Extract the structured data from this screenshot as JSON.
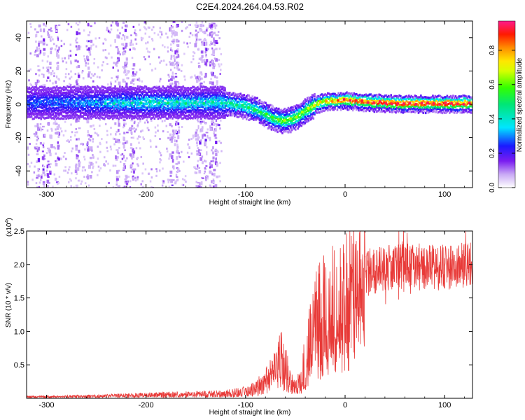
{
  "title": "C2E4.2024.264.04.53.R02",
  "chart_data": [
    {
      "type": "heatmap",
      "xlabel": "Height of straight line (km)",
      "ylabel": "Frequency (Hz)",
      "xlim": [
        -320,
        128
      ],
      "ylim": [
        -50,
        50
      ],
      "xticks": [
        -300,
        -200,
        -100,
        0,
        100
      ],
      "yticks": [
        -40,
        -20,
        0,
        20,
        40
      ],
      "colorbar": {
        "label": "Normalized spectral amplitude",
        "range": [
          0,
          0.97
        ],
        "ticks": [
          0.0,
          0.2,
          0.4,
          0.6,
          0.8
        ]
      },
      "band_center_hz": [
        {
          "x": -320,
          "y": 1
        },
        {
          "x": -250,
          "y": 1
        },
        {
          "x": -200,
          "y": 1
        },
        {
          "x": -150,
          "y": 1
        },
        {
          "x": -120,
          "y": 1
        },
        {
          "x": -100,
          "y": -1
        },
        {
          "x": -90,
          "y": -3
        },
        {
          "x": -80,
          "y": -6
        },
        {
          "x": -70,
          "y": -9
        },
        {
          "x": -60,
          "y": -10
        },
        {
          "x": -50,
          "y": -8
        },
        {
          "x": -40,
          "y": -4
        },
        {
          "x": -30,
          "y": 0
        },
        {
          "x": -20,
          "y": 2
        },
        {
          "x": -10,
          "y": 2
        },
        {
          "x": 0,
          "y": 2.5
        },
        {
          "x": 20,
          "y": 1.5
        },
        {
          "x": 60,
          "y": 0.5
        },
        {
          "x": 100,
          "y": 0.5
        },
        {
          "x": 128,
          "y": 0.5
        }
      ],
      "band_amplitude": [
        {
          "x": -320,
          "v": 0.28
        },
        {
          "x": -250,
          "v": 0.33
        },
        {
          "x": -200,
          "v": 0.42
        },
        {
          "x": -150,
          "v": 0.4
        },
        {
          "x": -120,
          "v": 0.42
        },
        {
          "x": -100,
          "v": 0.46
        },
        {
          "x": -80,
          "v": 0.52
        },
        {
          "x": -60,
          "v": 0.58
        },
        {
          "x": -40,
          "v": 0.62
        },
        {
          "x": -20,
          "v": 0.72
        },
        {
          "x": 0,
          "v": 0.86
        },
        {
          "x": 50,
          "v": 0.92
        },
        {
          "x": 128,
          "v": 0.9
        }
      ]
    },
    {
      "type": "line",
      "xlabel": "Height of straight line (km)",
      "ylabel": "SNR (10 * v/v)",
      "scale_label": "(x10",
      "scale_exponent": "4",
      "xlim": [
        -320,
        128
      ],
      "ylim": [
        0,
        2.5
      ],
      "xticks": [
        -300,
        -200,
        -100,
        0,
        100
      ],
      "yticks": [
        0.5,
        1.0,
        1.5,
        2.0,
        2.5
      ],
      "series": [
        {
          "color": "#e83a38",
          "envelope": [
            {
              "x": -320,
              "y": 0.02
            },
            {
              "x": -250,
              "y": 0.03
            },
            {
              "x": -200,
              "y": 0.05
            },
            {
              "x": -150,
              "y": 0.06
            },
            {
              "x": -120,
              "y": 0.07
            },
            {
              "x": -100,
              "y": 0.1
            },
            {
              "x": -90,
              "y": 0.15
            },
            {
              "x": -80,
              "y": 0.25
            },
            {
              "x": -70,
              "y": 0.4
            },
            {
              "x": -65,
              "y": 0.6
            },
            {
              "x": -60,
              "y": 0.45
            },
            {
              "x": -55,
              "y": 0.25
            },
            {
              "x": -50,
              "y": 0.15
            },
            {
              "x": -45,
              "y": 0.25
            },
            {
              "x": -40,
              "y": 0.55
            },
            {
              "x": -35,
              "y": 0.95
            },
            {
              "x": -30,
              "y": 1.25
            },
            {
              "x": -20,
              "y": 1.4
            },
            {
              "x": -10,
              "y": 1.5
            },
            {
              "x": 0,
              "y": 1.6
            },
            {
              "x": 10,
              "y": 1.75
            },
            {
              "x": 20,
              "y": 1.85
            },
            {
              "x": 30,
              "y": 1.9
            },
            {
              "x": 40,
              "y": 1.95
            },
            {
              "x": 60,
              "y": 2.0
            },
            {
              "x": 80,
              "y": 1.95
            },
            {
              "x": 100,
              "y": 1.95
            },
            {
              "x": 128,
              "y": 2.0
            }
          ]
        }
      ]
    }
  ]
}
